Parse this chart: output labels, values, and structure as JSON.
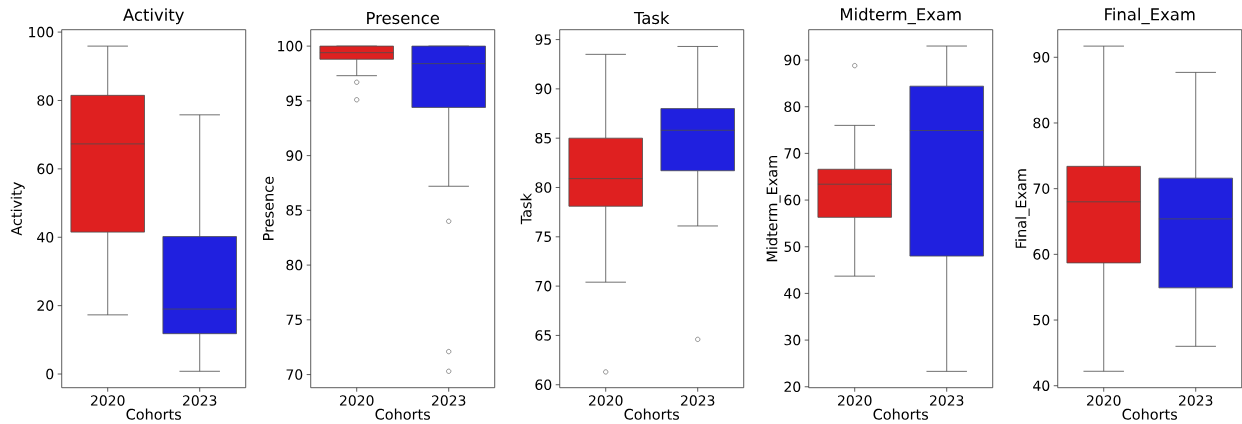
{
  "chart_data": [
    {
      "type": "box",
      "title": "Activity",
      "xlabel": "Cohorts",
      "ylabel": "Activity",
      "categories": [
        "2020",
        "2023"
      ],
      "colors": [
        "#df2020",
        "#2020df"
      ],
      "ylim": [
        -4,
        100.7
      ],
      "yticks": [
        0,
        20,
        40,
        60,
        80,
        100
      ],
      "boxes": [
        {
          "low": 17.3,
          "q1": 41.5,
          "median": 67.3,
          "q3": 81.5,
          "high": 95.9
        },
        {
          "low": 0.8,
          "q1": 11.8,
          "median": 19,
          "q3": 40.2,
          "high": 75.8
        }
      ]
    },
    {
      "type": "box",
      "title": "Presence",
      "xlabel": "Cohorts",
      "ylabel": "Presence",
      "categories": [
        "2020",
        "2023"
      ],
      "colors": [
        "#df2020",
        "#2020df"
      ],
      "ylim": [
        68.8,
        101.5
      ],
      "yticks": [
        70,
        75,
        80,
        85,
        90,
        95,
        100
      ],
      "boxes": [
        {
          "low": 97.3,
          "q1": 98.8,
          "median": 99.4,
          "q3": 100,
          "high": 100,
          "outliers": [
            96.7,
            95.1
          ]
        },
        {
          "low": 87.2,
          "q1": 94.4,
          "median": 98.4,
          "q3": 100,
          "high": 100,
          "outliers": [
            84.0,
            72.1,
            70.3
          ]
        }
      ]
    },
    {
      "type": "box",
      "title": "Task",
      "xlabel": "Cohorts",
      "ylabel": "Task",
      "categories": [
        "2020",
        "2023"
      ],
      "colors": [
        "#df2020",
        "#2020df"
      ],
      "ylim": [
        59.7,
        96
      ],
      "yticks": [
        60,
        65,
        70,
        75,
        80,
        85,
        90,
        95
      ],
      "boxes": [
        {
          "low": 70.4,
          "q1": 78.1,
          "median": 80.9,
          "q3": 85.0,
          "high": 93.5,
          "outliers": [
            61.3
          ]
        },
        {
          "low": 76.1,
          "q1": 81.7,
          "median": 85.8,
          "q3": 88.0,
          "high": 94.3,
          "outliers": [
            64.6
          ]
        }
      ]
    },
    {
      "type": "box",
      "title": "Midterm_Exam",
      "xlabel": "Cohorts",
      "ylabel": "Midterm_Exam",
      "categories": [
        "2020",
        "2023"
      ],
      "colors": [
        "#df2020",
        "#2020df"
      ],
      "ylim": [
        19.8,
        96.5
      ],
      "yticks": [
        20,
        30,
        40,
        50,
        60,
        70,
        80,
        90
      ],
      "boxes": [
        {
          "low": 43.7,
          "q1": 56.3,
          "median": 63.4,
          "q3": 66.6,
          "high": 76.0,
          "outliers": [
            88.8
          ]
        },
        {
          "low": 23.3,
          "q1": 48.0,
          "median": 74.9,
          "q3": 84.4,
          "high": 93.0
        }
      ]
    },
    {
      "type": "box",
      "title": "Final_Exam",
      "xlabel": "Cohorts",
      "ylabel": "Final_Exam",
      "categories": [
        "2020",
        "2023"
      ],
      "colors": [
        "#df2020",
        "#2020df"
      ],
      "ylim": [
        39.7,
        94.2
      ],
      "yticks": [
        40,
        50,
        60,
        70,
        80,
        90
      ],
      "boxes": [
        {
          "low": 42.2,
          "q1": 58.7,
          "median": 68.0,
          "q3": 73.4,
          "high": 91.7
        },
        {
          "low": 46.0,
          "q1": 54.9,
          "median": 65.4,
          "q3": 71.6,
          "high": 87.7
        }
      ]
    }
  ]
}
